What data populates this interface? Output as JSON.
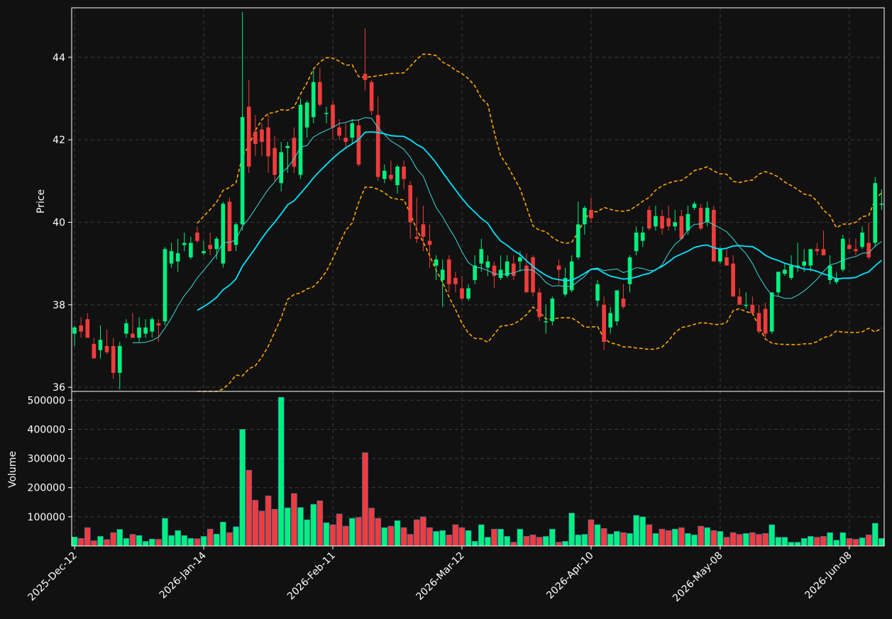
{
  "chart_data": {
    "type": "candlestick",
    "title": "",
    "price_panel": {
      "ylabel": "Price",
      "ylim": [
        35.9,
        45.2
      ],
      "yticks": [
        36,
        38,
        40,
        42,
        44
      ],
      "grid": true
    },
    "volume_panel": {
      "ylabel": "Volume",
      "ylim": [
        0,
        530000
      ],
      "yticks": [
        100000,
        200000,
        300000,
        400000,
        500000
      ],
      "grid": true
    },
    "x_tick_labels": [
      "2025-Dec-12",
      "2026-Jan-14",
      "2026-Feb-11",
      "2026-Mar-12",
      "2026-Apr-10",
      "2026-May-08",
      "2026-Jun-08"
    ],
    "x_tick_index": [
      0,
      20,
      40,
      60,
      80,
      100,
      120
    ],
    "colors": {
      "background": "#111111",
      "up": "#00f07f",
      "down": "#f03c3c",
      "ma_short": "#40d8d8",
      "ma_long": "#00e5ff",
      "bollinger": "#ffa500",
      "grid": "#3a3a3a",
      "spine": "#ffffff"
    },
    "ohlcv": [
      [
        37.3,
        37.5,
        37.0,
        37.45,
        31000
      ],
      [
        37.5,
        37.7,
        37.2,
        37.35,
        26000
      ],
      [
        37.65,
        37.8,
        37.2,
        37.2,
        63000
      ],
      [
        37.05,
        37.2,
        36.7,
        36.7,
        18000
      ],
      [
        36.9,
        37.5,
        36.7,
        37.15,
        33000
      ],
      [
        37.0,
        37.4,
        36.8,
        36.85,
        22000
      ],
      [
        37.0,
        37.2,
        36.2,
        36.35,
        46000
      ],
      [
        36.35,
        37.1,
        35.95,
        37.0,
        57000
      ],
      [
        37.3,
        37.65,
        37.2,
        37.55,
        26000
      ],
      [
        37.3,
        37.8,
        37.2,
        37.2,
        40000
      ],
      [
        37.2,
        37.7,
        37.1,
        37.45,
        36000
      ],
      [
        37.3,
        37.65,
        37.2,
        37.45,
        16000
      ],
      [
        37.35,
        37.7,
        37.2,
        37.65,
        24000
      ],
      [
        37.55,
        37.65,
        37.1,
        37.5,
        23000
      ],
      [
        37.6,
        39.4,
        37.5,
        39.35,
        95000
      ],
      [
        39.0,
        39.5,
        38.9,
        39.3,
        36000
      ],
      [
        39.05,
        39.6,
        38.8,
        39.25,
        53000
      ],
      [
        39.45,
        39.75,
        39.3,
        39.5,
        36000
      ],
      [
        39.15,
        39.65,
        39.1,
        39.5,
        26000
      ],
      [
        39.75,
        39.9,
        39.5,
        39.55,
        25000
      ],
      [
        39.25,
        39.55,
        39.2,
        39.3,
        33000
      ],
      [
        39.45,
        39.75,
        39.2,
        39.35,
        58000
      ],
      [
        39.35,
        39.65,
        39.1,
        39.6,
        41000
      ],
      [
        39.0,
        40.5,
        38.9,
        40.45,
        82000
      ],
      [
        40.5,
        40.6,
        39.3,
        39.3,
        46000
      ],
      [
        39.45,
        40.0,
        39.3,
        39.95,
        66000
      ],
      [
        39.95,
        45.1,
        39.8,
        42.55,
        400000
      ],
      [
        42.8,
        43.45,
        41.2,
        41.35,
        260000
      ],
      [
        42.2,
        42.6,
        41.6,
        41.9,
        157000
      ],
      [
        42.25,
        42.4,
        41.6,
        41.95,
        120000
      ],
      [
        42.3,
        42.6,
        41.2,
        41.6,
        172000
      ],
      [
        41.8,
        42.1,
        41.0,
        41.15,
        126000
      ],
      [
        40.95,
        41.95,
        40.75,
        41.7,
        510000
      ],
      [
        41.8,
        41.95,
        41.2,
        41.85,
        131000
      ],
      [
        42.05,
        42.3,
        41.2,
        41.35,
        180000
      ],
      [
        41.15,
        43.0,
        41.05,
        42.85,
        132000
      ],
      [
        42.3,
        42.95,
        42.05,
        42.9,
        90000
      ],
      [
        42.55,
        43.7,
        42.4,
        43.4,
        143000
      ],
      [
        43.4,
        43.75,
        42.8,
        42.85,
        155000
      ],
      [
        42.65,
        42.8,
        42.4,
        42.65,
        80000
      ],
      [
        42.85,
        42.95,
        42.0,
        42.3,
        73000
      ],
      [
        42.3,
        42.5,
        42.0,
        42.1,
        110000
      ],
      [
        42.05,
        42.4,
        41.8,
        41.95,
        68000
      ],
      [
        42.05,
        42.5,
        41.9,
        42.4,
        95000
      ],
      [
        42.35,
        42.5,
        41.35,
        41.4,
        98000
      ],
      [
        43.6,
        44.7,
        43.2,
        43.45,
        320000
      ],
      [
        43.4,
        43.45,
        42.6,
        42.7,
        130000
      ],
      [
        42.6,
        43.05,
        41.0,
        41.1,
        95000
      ],
      [
        41.05,
        41.4,
        40.95,
        41.25,
        63000
      ],
      [
        41.15,
        41.5,
        41.0,
        41.05,
        68000
      ],
      [
        40.9,
        41.4,
        40.7,
        41.35,
        87000
      ],
      [
        41.35,
        41.5,
        40.8,
        41.05,
        63000
      ],
      [
        40.9,
        41.0,
        39.6,
        40.0,
        40000
      ],
      [
        39.65,
        40.6,
        39.5,
        39.6,
        90000
      ],
      [
        39.95,
        40.4,
        39.3,
        39.65,
        100000
      ],
      [
        39.55,
        39.95,
        38.9,
        39.45,
        63000
      ],
      [
        38.95,
        39.2,
        38.6,
        39.1,
        50000
      ],
      [
        38.6,
        39.1,
        37.95,
        38.85,
        53000
      ],
      [
        39.1,
        39.2,
        38.3,
        38.5,
        38000
      ],
      [
        38.65,
        38.8,
        38.3,
        38.5,
        73000
      ],
      [
        38.4,
        38.7,
        38.1,
        38.15,
        63000
      ],
      [
        38.15,
        38.5,
        38.1,
        38.4,
        53000
      ],
      [
        38.6,
        39.2,
        38.5,
        38.95,
        16000
      ],
      [
        39.0,
        39.6,
        38.8,
        39.35,
        73000
      ],
      [
        38.9,
        39.2,
        38.7,
        39.05,
        30000
      ],
      [
        38.95,
        39.05,
        38.4,
        38.7,
        58000
      ],
      [
        38.65,
        39.2,
        38.6,
        38.85,
        58000
      ],
      [
        38.7,
        39.2,
        38.65,
        39.05,
        33000
      ],
      [
        39.0,
        39.2,
        38.6,
        38.7,
        13000
      ],
      [
        39.05,
        39.3,
        38.8,
        39.15,
        58000
      ],
      [
        38.95,
        39.25,
        38.5,
        38.3,
        33000
      ],
      [
        39.15,
        39.2,
        38.2,
        38.3,
        38000
      ],
      [
        38.3,
        38.4,
        37.6,
        37.7,
        30000
      ],
      [
        37.6,
        38.0,
        37.3,
        37.6,
        33000
      ],
      [
        37.6,
        38.2,
        37.5,
        38.15,
        58000
      ],
      [
        38.95,
        39.1,
        38.5,
        38.85,
        13000
      ],
      [
        38.25,
        38.9,
        38.2,
        38.65,
        16000
      ],
      [
        38.35,
        39.2,
        38.3,
        39.05,
        113000
      ],
      [
        39.15,
        40.5,
        39.1,
        39.95,
        38000
      ],
      [
        39.95,
        40.4,
        39.7,
        40.35,
        40000
      ],
      [
        40.3,
        40.6,
        40.0,
        40.1,
        90000
      ],
      [
        38.1,
        38.6,
        37.95,
        38.5,
        73000
      ],
      [
        38.0,
        38.2,
        36.9,
        37.1,
        60000
      ],
      [
        37.45,
        37.95,
        37.3,
        37.8,
        41000
      ],
      [
        37.6,
        38.3,
        37.5,
        38.35,
        50000
      ],
      [
        38.15,
        38.5,
        37.9,
        37.95,
        46000
      ],
      [
        38.5,
        39.2,
        38.3,
        39.15,
        43000
      ],
      [
        39.3,
        39.9,
        39.2,
        39.75,
        105000
      ],
      [
        39.55,
        39.9,
        39.4,
        39.75,
        100000
      ],
      [
        40.3,
        40.4,
        39.8,
        39.85,
        73000
      ],
      [
        39.9,
        40.4,
        39.8,
        40.15,
        43000
      ],
      [
        40.15,
        40.3,
        39.7,
        39.85,
        58000
      ],
      [
        40.1,
        40.4,
        39.8,
        39.9,
        53000
      ],
      [
        39.9,
        40.3,
        39.8,
        40.0,
        58000
      ],
      [
        40.15,
        40.3,
        39.6,
        39.6,
        63000
      ],
      [
        39.8,
        40.4,
        39.7,
        40.2,
        43000
      ],
      [
        40.35,
        40.5,
        40.3,
        40.45,
        38000
      ],
      [
        40.35,
        40.45,
        39.8,
        39.85,
        68000
      ],
      [
        40.0,
        40.5,
        39.9,
        40.35,
        63000
      ],
      [
        40.3,
        40.4,
        39.05,
        39.05,
        53000
      ],
      [
        39.05,
        39.4,
        39.0,
        39.35,
        50000
      ],
      [
        39.15,
        39.35,
        39.0,
        38.95,
        30000
      ],
      [
        39.0,
        39.2,
        38.2,
        38.2,
        46000
      ],
      [
        38.2,
        38.4,
        38.0,
        38.0,
        40000
      ],
      [
        38.0,
        38.3,
        37.9,
        38.0,
        43000
      ],
      [
        38.0,
        38.2,
        37.9,
        37.8,
        46000
      ],
      [
        37.8,
        38.0,
        37.3,
        37.35,
        40000
      ],
      [
        37.9,
        38.05,
        37.2,
        37.3,
        43000
      ],
      [
        37.35,
        38.3,
        37.3,
        38.3,
        73000
      ],
      [
        38.3,
        38.8,
        38.2,
        38.8,
        30000
      ],
      [
        38.75,
        39.0,
        38.7,
        38.85,
        30000
      ],
      [
        38.65,
        39.2,
        38.6,
        38.95,
        13000
      ],
      [
        38.9,
        39.5,
        38.8,
        38.95,
        13000
      ],
      [
        38.95,
        39.35,
        38.8,
        39.05,
        26000
      ],
      [
        38.95,
        39.3,
        38.8,
        39.35,
        33000
      ],
      [
        39.35,
        39.5,
        39.2,
        39.3,
        30000
      ],
      [
        39.35,
        39.8,
        39.2,
        39.2,
        33000
      ],
      [
        38.6,
        39.2,
        38.5,
        38.95,
        46000
      ],
      [
        38.55,
        38.8,
        38.5,
        38.65,
        20000
      ],
      [
        38.85,
        39.7,
        38.8,
        39.6,
        46000
      ],
      [
        39.45,
        39.6,
        39.4,
        39.35,
        26000
      ],
      [
        39.35,
        39.6,
        39.2,
        39.3,
        23000
      ],
      [
        39.4,
        39.9,
        39.35,
        39.75,
        28000
      ],
      [
        39.5,
        40.0,
        39.1,
        39.15,
        38000
      ],
      [
        39.5,
        41.1,
        39.4,
        40.95,
        78000
      ],
      [
        40.45,
        40.8,
        40.3,
        40.45,
        26000
      ]
    ]
  }
}
